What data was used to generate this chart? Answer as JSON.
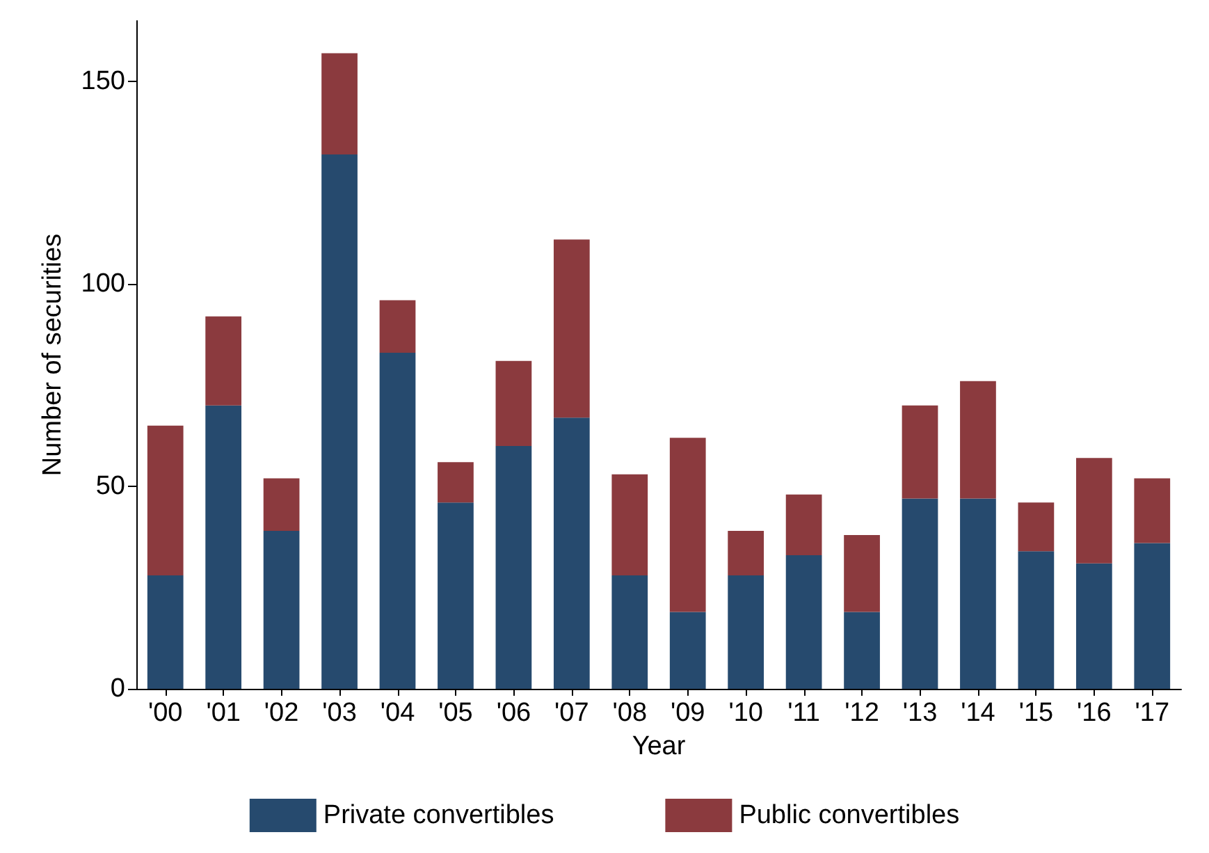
{
  "chart_data": {
    "type": "bar",
    "stacked": true,
    "xlabel": "Year",
    "ylabel": "Number of securities",
    "categories": [
      "'00",
      "'01",
      "'02",
      "'03",
      "'04",
      "'05",
      "'06",
      "'07",
      "'08",
      "'09",
      "'10",
      "'11",
      "'12",
      "'13",
      "'14",
      "'15",
      "'16",
      "'17"
    ],
    "series": [
      {
        "name": "Private convertibles",
        "color": "#264a6e",
        "values": [
          28,
          70,
          39,
          132,
          83,
          46,
          60,
          67,
          28,
          19,
          28,
          33,
          19,
          47,
          47,
          34,
          31,
          36
        ]
      },
      {
        "name": "Public convertibles",
        "color": "#8b3a3e",
        "values": [
          37,
          22,
          13,
          25,
          13,
          10,
          21,
          44,
          25,
          43,
          11,
          15,
          19,
          23,
          29,
          12,
          26,
          16
        ]
      }
    ],
    "ylim": [
      0,
      165
    ],
    "yticks": [
      0,
      50,
      100,
      150
    ],
    "grid": false,
    "legend": "bottom"
  }
}
